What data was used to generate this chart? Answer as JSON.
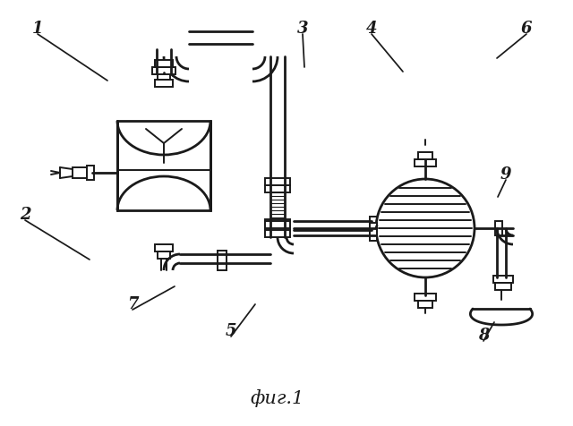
{
  "title": "фиг.1",
  "bg_color": "#ffffff",
  "line_color": "#1a1a1a",
  "lw": 1.4,
  "lw2": 2.0
}
